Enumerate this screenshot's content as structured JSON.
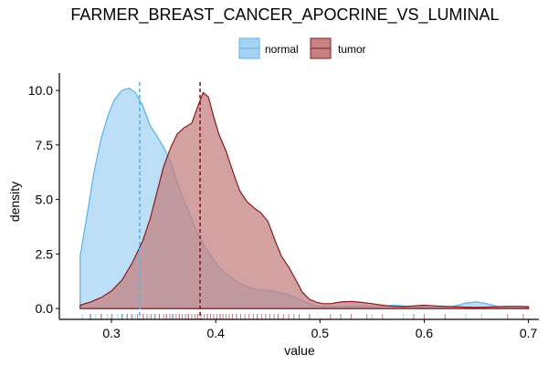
{
  "chart_data": {
    "type": "area",
    "title": "FARMER_BREAST_CANCER_APOCRINE_VS_LUMINAL",
    "xlabel": "value",
    "ylabel": "density",
    "xlim": [
      0.25,
      0.71
    ],
    "ylim": [
      -0.5,
      10.8
    ],
    "x_ticks": [
      0.3,
      0.4,
      0.5,
      0.6,
      0.7
    ],
    "x_tick_labels": [
      "0.3",
      "0.4",
      "0.5",
      "0.6",
      "0.7"
    ],
    "y_ticks": [
      0,
      2.5,
      5,
      7.5,
      10
    ],
    "y_tick_labels": [
      "0.0",
      "2.5",
      "5.0",
      "7.5",
      "10.0"
    ],
    "grid": false,
    "legend_position": "top",
    "series": [
      {
        "name": "normal",
        "color": "#56B4E9",
        "fill": "#a6d3f4",
        "mean": 0.327,
        "points": [
          [
            0.27,
            2.4
          ],
          [
            0.277,
            4.4
          ],
          [
            0.283,
            6.2
          ],
          [
            0.29,
            7.8
          ],
          [
            0.297,
            8.9
          ],
          [
            0.303,
            9.6
          ],
          [
            0.31,
            10.0
          ],
          [
            0.317,
            10.1
          ],
          [
            0.323,
            9.9
          ],
          [
            0.33,
            9.3
          ],
          [
            0.337,
            8.4
          ],
          [
            0.345,
            7.8
          ],
          [
            0.35,
            7.4
          ],
          [
            0.357,
            6.7
          ],
          [
            0.363,
            5.8
          ],
          [
            0.37,
            4.9
          ],
          [
            0.377,
            4.1
          ],
          [
            0.383,
            3.4
          ],
          [
            0.39,
            2.8
          ],
          [
            0.397,
            2.3
          ],
          [
            0.403,
            1.9
          ],
          [
            0.41,
            1.6
          ],
          [
            0.417,
            1.35
          ],
          [
            0.423,
            1.15
          ],
          [
            0.43,
            1.0
          ],
          [
            0.437,
            0.9
          ],
          [
            0.443,
            0.85
          ],
          [
            0.45,
            0.82
          ],
          [
            0.457,
            0.78
          ],
          [
            0.463,
            0.72
          ],
          [
            0.47,
            0.62
          ],
          [
            0.477,
            0.5
          ],
          [
            0.483,
            0.35
          ],
          [
            0.49,
            0.22
          ],
          [
            0.497,
            0.12
          ],
          [
            0.503,
            0.08
          ],
          [
            0.51,
            0.08
          ],
          [
            0.52,
            0.1
          ],
          [
            0.53,
            0.12
          ],
          [
            0.54,
            0.12
          ],
          [
            0.55,
            0.1
          ],
          [
            0.56,
            0.1
          ],
          [
            0.57,
            0.15
          ],
          [
            0.58,
            0.12
          ],
          [
            0.59,
            0.07
          ],
          [
            0.6,
            0.05
          ],
          [
            0.61,
            0.05
          ],
          [
            0.62,
            0.05
          ],
          [
            0.63,
            0.12
          ],
          [
            0.64,
            0.25
          ],
          [
            0.65,
            0.3
          ],
          [
            0.66,
            0.22
          ],
          [
            0.67,
            0.1
          ],
          [
            0.68,
            0.05
          ],
          [
            0.69,
            0.04
          ],
          [
            0.7,
            0.04
          ]
        ],
        "rug": [
          0.272,
          0.279,
          0.285,
          0.291,
          0.296,
          0.301,
          0.306,
          0.311,
          0.315,
          0.319,
          0.323,
          0.327,
          0.331,
          0.336,
          0.341,
          0.346,
          0.352,
          0.358,
          0.365,
          0.373,
          0.382,
          0.392,
          0.405,
          0.42,
          0.44,
          0.46,
          0.49,
          0.55,
          0.58,
          0.64,
          0.655
        ]
      },
      {
        "name": "tumor",
        "color": "#8B1A1A",
        "fill": "#c48282",
        "mean": 0.385,
        "points": [
          [
            0.27,
            0.15
          ],
          [
            0.28,
            0.3
          ],
          [
            0.29,
            0.5
          ],
          [
            0.3,
            0.8
          ],
          [
            0.31,
            1.3
          ],
          [
            0.32,
            2.1
          ],
          [
            0.33,
            3.1
          ],
          [
            0.337,
            4.1
          ],
          [
            0.343,
            5.2
          ],
          [
            0.35,
            6.5
          ],
          [
            0.357,
            7.4
          ],
          [
            0.363,
            8.0
          ],
          [
            0.37,
            8.3
          ],
          [
            0.377,
            8.5
          ],
          [
            0.383,
            9.3
          ],
          [
            0.388,
            9.9
          ],
          [
            0.393,
            9.7
          ],
          [
            0.398,
            8.8
          ],
          [
            0.403,
            8.0
          ],
          [
            0.41,
            7.2
          ],
          [
            0.417,
            6.2
          ],
          [
            0.423,
            5.4
          ],
          [
            0.43,
            4.9
          ],
          [
            0.437,
            4.6
          ],
          [
            0.443,
            4.4
          ],
          [
            0.45,
            4.0
          ],
          [
            0.457,
            3.1
          ],
          [
            0.463,
            2.4
          ],
          [
            0.47,
            1.9
          ],
          [
            0.477,
            1.3
          ],
          [
            0.483,
            0.75
          ],
          [
            0.49,
            0.42
          ],
          [
            0.497,
            0.28
          ],
          [
            0.503,
            0.22
          ],
          [
            0.51,
            0.22
          ],
          [
            0.52,
            0.3
          ],
          [
            0.53,
            0.32
          ],
          [
            0.54,
            0.28
          ],
          [
            0.55,
            0.22
          ],
          [
            0.56,
            0.15
          ],
          [
            0.57,
            0.1
          ],
          [
            0.58,
            0.08
          ],
          [
            0.59,
            0.12
          ],
          [
            0.6,
            0.15
          ],
          [
            0.61,
            0.12
          ],
          [
            0.62,
            0.1
          ],
          [
            0.63,
            0.08
          ],
          [
            0.64,
            0.06
          ],
          [
            0.65,
            0.05
          ],
          [
            0.66,
            0.06
          ],
          [
            0.67,
            0.08
          ],
          [
            0.68,
            0.1
          ],
          [
            0.69,
            0.1
          ],
          [
            0.7,
            0.08
          ]
        ],
        "rug": [
          0.28,
          0.29,
          0.3,
          0.31,
          0.315,
          0.32,
          0.325,
          0.33,
          0.334,
          0.338,
          0.342,
          0.346,
          0.35,
          0.353,
          0.356,
          0.359,
          0.362,
          0.365,
          0.368,
          0.371,
          0.374,
          0.377,
          0.38,
          0.383,
          0.386,
          0.389,
          0.392,
          0.395,
          0.398,
          0.401,
          0.404,
          0.407,
          0.41,
          0.413,
          0.416,
          0.42,
          0.424,
          0.428,
          0.432,
          0.436,
          0.44,
          0.444,
          0.448,
          0.452,
          0.456,
          0.46,
          0.465,
          0.47,
          0.475,
          0.48,
          0.49,
          0.51,
          0.52,
          0.53,
          0.545,
          0.56,
          0.59,
          0.6,
          0.62,
          0.68,
          0.695
        ]
      }
    ]
  }
}
